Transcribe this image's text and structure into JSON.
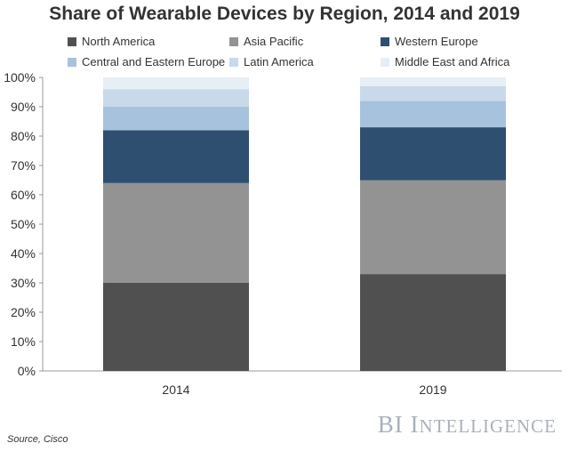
{
  "chart_data": {
    "type": "bar",
    "stacked": true,
    "title": "Share of Wearable Devices by Region, 2014 and 2019",
    "categories": [
      "2014",
      "2019"
    ],
    "series": [
      {
        "name": "North America",
        "values": [
          30,
          33
        ],
        "color": "#505050"
      },
      {
        "name": "Asia Pacific",
        "values": [
          34,
          32
        ],
        "color": "#939393"
      },
      {
        "name": "Western Europe",
        "values": [
          18,
          18
        ],
        "color": "#2e4f70"
      },
      {
        "name": "Central and Eastern Europe",
        "values": [
          8,
          9
        ],
        "color": "#a7c2dd"
      },
      {
        "name": "Latin America",
        "values": [
          6,
          5
        ],
        "color": "#c9d9ea"
      },
      {
        "name": "Middle East and Africa",
        "values": [
          4,
          3
        ],
        "color": "#e6eef6"
      }
    ],
    "yticks": [
      "0%",
      "10%",
      "20%",
      "30%",
      "40%",
      "50%",
      "60%",
      "70%",
      "80%",
      "90%",
      "100%"
    ],
    "ylim": [
      0,
      100
    ],
    "xlabel": "",
    "ylabel": "",
    "legend": "top"
  },
  "footer": {
    "source": "Source, Cisco",
    "brand_bi": "BI",
    "brand_i": "I",
    "brand_rest": "NTELLIGENCE"
  }
}
